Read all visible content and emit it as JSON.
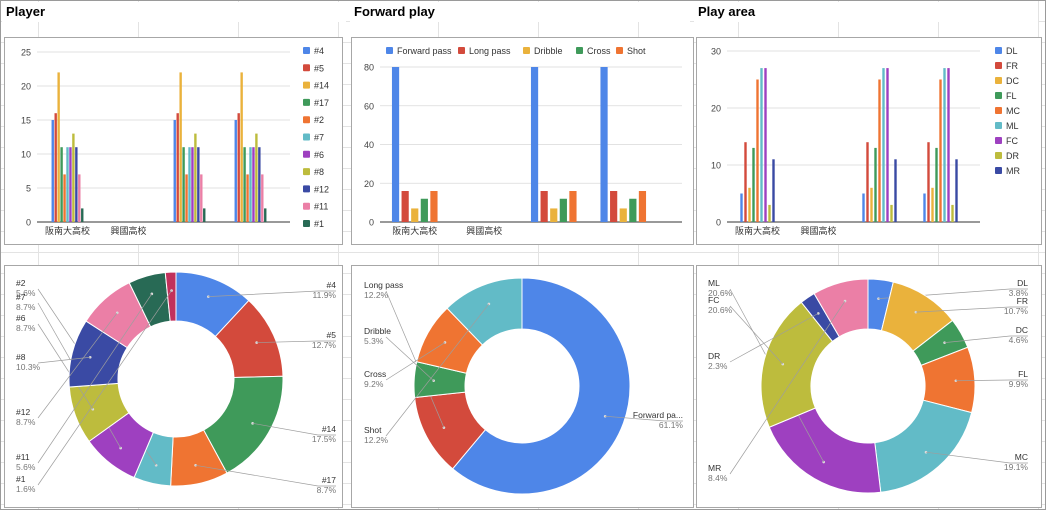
{
  "sections": {
    "player": "Player",
    "forward_play": "Forward play",
    "play_area": "Play area"
  },
  "chart_data": [
    {
      "id": "player-bar",
      "type": "bar",
      "categories": [
        "阪南大高校",
        "興國高校",
        "",
        ""
      ],
      "ylim": [
        0,
        25
      ],
      "yticks": [
        0,
        5,
        10,
        15,
        20,
        25
      ],
      "legend_position": "right",
      "series": [
        {
          "name": "#4",
          "color": "#4e86e8",
          "values": [
            15,
            null,
            15,
            15
          ]
        },
        {
          "name": "#5",
          "color": "#d34a3c",
          "values": [
            16,
            null,
            16,
            16
          ]
        },
        {
          "name": "#14",
          "color": "#eab23c",
          "values": [
            22,
            null,
            22,
            22
          ]
        },
        {
          "name": "#17",
          "color": "#3f9a5a",
          "values": [
            11,
            null,
            11,
            11
          ]
        },
        {
          "name": "#2",
          "color": "#ef7432",
          "values": [
            7,
            null,
            7,
            7
          ]
        },
        {
          "name": "#7",
          "color": "#62bbc7",
          "values": [
            11,
            null,
            11,
            11
          ]
        },
        {
          "name": "#6",
          "color": "#9e40c0",
          "values": [
            11,
            null,
            11,
            11
          ]
        },
        {
          "name": "#8",
          "color": "#bdbc3d",
          "values": [
            13,
            null,
            13,
            13
          ]
        },
        {
          "name": "#12",
          "color": "#3a4aa4",
          "values": [
            11,
            null,
            11,
            11
          ]
        },
        {
          "name": "#11",
          "color": "#eb7fa6",
          "values": [
            7,
            null,
            7,
            7
          ]
        },
        {
          "name": "#1",
          "color": "#286a55",
          "values": [
            2,
            null,
            2,
            2
          ]
        }
      ]
    },
    {
      "id": "forward-bar",
      "type": "bar",
      "categories": [
        "阪南大高校",
        "興國高校",
        "",
        ""
      ],
      "ylim": [
        0,
        80
      ],
      "yticks": [
        0,
        20,
        40,
        60,
        80
      ],
      "legend_position": "top",
      "series": [
        {
          "name": "Forward pass",
          "color": "#4e86e8",
          "values": [
            80,
            null,
            80,
            80
          ]
        },
        {
          "name": "Long pass",
          "color": "#d34a3c",
          "values": [
            16,
            null,
            16,
            16
          ]
        },
        {
          "name": "Dribble",
          "color": "#eab23c",
          "values": [
            7,
            null,
            7,
            7
          ]
        },
        {
          "name": "Cross",
          "color": "#3f9a5a",
          "values": [
            12,
            null,
            12,
            12
          ]
        },
        {
          "name": "Shot",
          "color": "#ef7432",
          "values": [
            16,
            null,
            16,
            16
          ]
        }
      ]
    },
    {
      "id": "area-bar",
      "type": "bar",
      "categories": [
        "阪南大高校",
        "興國高校",
        "",
        ""
      ],
      "ylim": [
        0,
        30
      ],
      "yticks": [
        0,
        10,
        20,
        30
      ],
      "legend_position": "right",
      "series": [
        {
          "name": "DL",
          "color": "#4e86e8",
          "values": [
            5,
            null,
            5,
            5
          ]
        },
        {
          "name": "FR",
          "color": "#d34a3c",
          "values": [
            14,
            null,
            14,
            14
          ]
        },
        {
          "name": "DC",
          "color": "#eab23c",
          "values": [
            6,
            null,
            6,
            6
          ]
        },
        {
          "name": "FL",
          "color": "#3f9a5a",
          "values": [
            13,
            null,
            13,
            13
          ]
        },
        {
          "name": "MC",
          "color": "#ef7432",
          "values": [
            25,
            null,
            25,
            25
          ]
        },
        {
          "name": "ML",
          "color": "#62bbc7",
          "values": [
            27,
            null,
            27,
            27
          ]
        },
        {
          "name": "FC",
          "color": "#9e40c0",
          "values": [
            27,
            null,
            27,
            27
          ]
        },
        {
          "name": "DR",
          "color": "#bdbc3d",
          "values": [
            3,
            null,
            3,
            3
          ]
        },
        {
          "name": "MR",
          "color": "#3a4aa4",
          "values": [
            11,
            null,
            11,
            11
          ]
        }
      ]
    },
    {
      "id": "player-pie",
      "type": "pie",
      "donut": true,
      "slices": [
        {
          "label": "#4",
          "value": 11.9,
          "pct": "11.9%",
          "color": "#4e86e8",
          "side": "right"
        },
        {
          "label": "#5",
          "value": 12.7,
          "pct": "12.7%",
          "color": "#d34a3c",
          "side": "right"
        },
        {
          "label": "#14",
          "value": 17.5,
          "pct": "17.5%",
          "color": "#3f9a5a",
          "side": "right"
        },
        {
          "label": "#17",
          "value": 8.7,
          "pct": "8.7%",
          "color": "#ef7432",
          "side": "right"
        },
        {
          "label": "#2",
          "value": 5.6,
          "pct": "5.6%",
          "color": "#62bbc7",
          "side": "left"
        },
        {
          "label": "#7",
          "value": 8.7,
          "pct": "8.7%",
          "color": "#9e40c0",
          "side": "left"
        },
        {
          "label": "#6",
          "value": 8.7,
          "pct": "8.7%",
          "color": "#bdbc3d",
          "side": "left"
        },
        {
          "label": "#8",
          "value": 10.3,
          "pct": "10.3%",
          "color": "#3a4aa4",
          "side": "left"
        },
        {
          "label": "#12",
          "value": 8.7,
          "pct": "8.7%",
          "color": "#eb7fa6",
          "side": "left"
        },
        {
          "label": "#11",
          "value": 5.6,
          "pct": "5.6%",
          "color": "#286a55",
          "side": "left"
        },
        {
          "label": "#1",
          "value": 1.6,
          "pct": "1.6%",
          "color": "#c1315c",
          "side": "left"
        }
      ]
    },
    {
      "id": "forward-pie",
      "type": "pie",
      "donut": true,
      "slices": [
        {
          "label": "Forward pa...",
          "value": 61.1,
          "pct": "61.1%",
          "color": "#4e86e8",
          "side": "right"
        },
        {
          "label": "Long pass",
          "value": 12.2,
          "pct": "12.2%",
          "color": "#d34a3c",
          "side": "left"
        },
        {
          "label": "Dribble",
          "value": 5.3,
          "pct": "5.3%",
          "color": "#3f9a5a",
          "side": "left"
        },
        {
          "label": "Cross",
          "value": 9.2,
          "pct": "9.2%",
          "color": "#ef7432",
          "side": "left"
        },
        {
          "label": "Shot",
          "value": 12.2,
          "pct": "12.2%",
          "color": "#62bbc7",
          "side": "left"
        }
      ]
    },
    {
      "id": "area-pie",
      "type": "pie",
      "donut": true,
      "slices": [
        {
          "label": "DL",
          "value": 3.8,
          "pct": "3.8%",
          "color": "#4e86e8",
          "side": "right"
        },
        {
          "label": "FR",
          "value": 10.7,
          "pct": "10.7%",
          "color": "#eab23c",
          "side": "right"
        },
        {
          "label": "DC",
          "value": 4.6,
          "pct": "4.6%",
          "color": "#3f9a5a",
          "side": "right"
        },
        {
          "label": "FL",
          "value": 9.9,
          "pct": "9.9%",
          "color": "#ef7432",
          "side": "right"
        },
        {
          "label": "MC",
          "value": 19.1,
          "pct": "19.1%",
          "color": "#62bbc7",
          "side": "right"
        },
        {
          "label": "ML",
          "value": 20.6,
          "pct": "20.6%",
          "color": "#9e40c0",
          "side": "left"
        },
        {
          "label": "FC",
          "value": 20.6,
          "pct": "20.6%",
          "color": "#bdbc3d",
          "side": "left"
        },
        {
          "label": "DR",
          "value": 2.3,
          "pct": "2.3%",
          "color": "#3a4aa4",
          "side": "left"
        },
        {
          "label": "MR",
          "value": 8.4,
          "pct": "8.4%",
          "color": "#eb7fa6",
          "side": "left"
        }
      ]
    }
  ]
}
